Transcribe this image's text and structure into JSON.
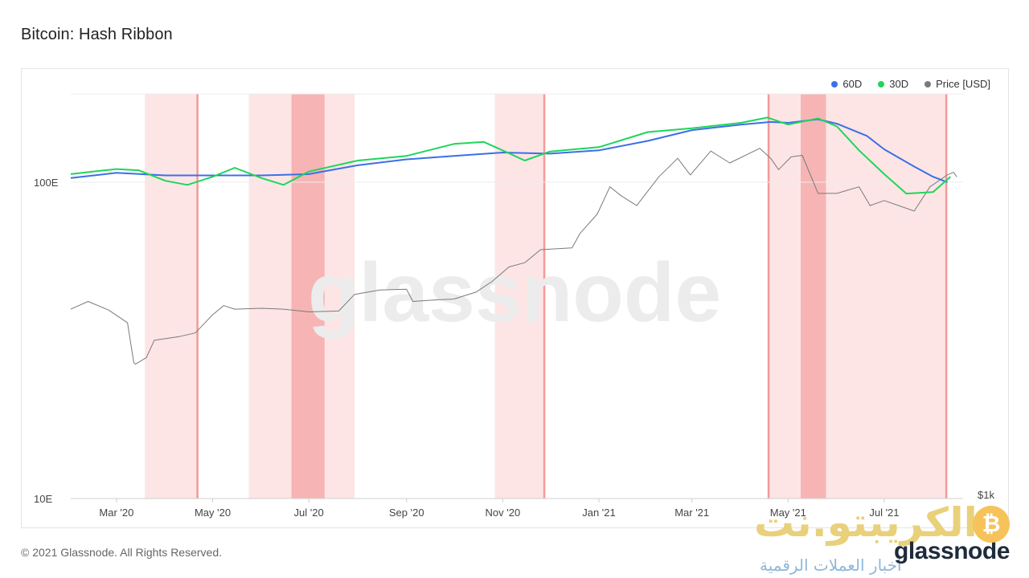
{
  "title": "Bitcoin: Hash Ribbon",
  "footer": "© 2021 Glassnode. All Rights Reserved.",
  "legend": [
    {
      "label": "60D",
      "color": "#3b6fe8"
    },
    {
      "label": "30D",
      "color": "#1ed65a"
    },
    {
      "label": "Price [USD]",
      "color": "#7a7a7a"
    }
  ],
  "watermarks": {
    "center": "glassnode",
    "arabic": "الكريبتو.نت",
    "arabic_sub": "أخبار العملات الرقمية",
    "english": "glassnode",
    "btc_symbol": "₿"
  },
  "chart_data": {
    "type": "line",
    "title": "Bitcoin: Hash Ribbon",
    "x_axis": {
      "type": "date",
      "range": [
        "2020-02-01",
        "2021-08-20"
      ],
      "tick_labels": [
        "Mar '20",
        "May '20",
        "Jul '20",
        "Sep '20",
        "Nov '20",
        "Jan '21",
        "Mar '21",
        "May '21",
        "Jul '21"
      ],
      "tick_dates": [
        "2020-03-01",
        "2020-05-01",
        "2020-07-01",
        "2020-09-01",
        "2020-11-01",
        "2021-01-01",
        "2021-03-01",
        "2021-05-01",
        "2021-07-01"
      ]
    },
    "y_left": {
      "scale": "log",
      "unit": "E",
      "range": [
        10,
        190
      ],
      "tick_labels": [
        "10E",
        "100E"
      ],
      "tick_values": [
        10,
        100
      ]
    },
    "y_right": {
      "scale": "log",
      "unit": "USD",
      "range": [
        1000,
        120000
      ],
      "tick_labels": [
        "$1k"
      ],
      "tick_values": [
        1000
      ]
    },
    "grid": "horizontal",
    "legend_position": "top-right",
    "capitulation_periods": [
      {
        "start": "2020-03-19",
        "end": "2020-04-22",
        "end_marker": true
      },
      {
        "start": "2020-05-24",
        "end": "2020-07-30"
      },
      {
        "start": "2020-10-27",
        "end": "2020-11-28",
        "end_marker": true
      },
      {
        "start": "2021-04-18",
        "end": "2021-08-10",
        "start_marker": true,
        "end_marker": true
      }
    ],
    "capitulation_dark": [
      {
        "start": "2020-06-20",
        "end": "2020-07-11"
      },
      {
        "start": "2021-05-09",
        "end": "2021-05-25"
      }
    ],
    "series": [
      {
        "name": "60D",
        "axis": "left",
        "color": "#3b6fe8",
        "points": [
          [
            "2020-02-01",
            103
          ],
          [
            "2020-03-01",
            107
          ],
          [
            "2020-04-01",
            105
          ],
          [
            "2020-05-01",
            105
          ],
          [
            "2020-06-01",
            105
          ],
          [
            "2020-07-01",
            106
          ],
          [
            "2020-08-01",
            113
          ],
          [
            "2020-09-01",
            118
          ],
          [
            "2020-10-01",
            121
          ],
          [
            "2020-11-01",
            124
          ],
          [
            "2020-12-01",
            123
          ],
          [
            "2021-01-01",
            126
          ],
          [
            "2021-02-01",
            135
          ],
          [
            "2021-03-01",
            146
          ],
          [
            "2021-04-01",
            152
          ],
          [
            "2021-04-20",
            155
          ],
          [
            "2021-05-01",
            154
          ],
          [
            "2021-05-20",
            158
          ],
          [
            "2021-06-01",
            153
          ],
          [
            "2021-06-20",
            140
          ],
          [
            "2021-07-01",
            127
          ],
          [
            "2021-07-20",
            112
          ],
          [
            "2021-08-01",
            104
          ],
          [
            "2021-08-10",
            100
          ]
        ]
      },
      {
        "name": "30D",
        "axis": "left",
        "color": "#1ed65a",
        "points": [
          [
            "2020-02-01",
            106
          ],
          [
            "2020-02-15",
            108
          ],
          [
            "2020-03-01",
            110
          ],
          [
            "2020-03-15",
            109
          ],
          [
            "2020-04-01",
            101
          ],
          [
            "2020-04-15",
            98
          ],
          [
            "2020-05-01",
            104
          ],
          [
            "2020-05-15",
            111
          ],
          [
            "2020-06-01",
            103
          ],
          [
            "2020-06-15",
            98
          ],
          [
            "2020-07-01",
            108
          ],
          [
            "2020-08-01",
            117
          ],
          [
            "2020-09-01",
            121
          ],
          [
            "2020-10-01",
            132
          ],
          [
            "2020-10-20",
            134
          ],
          [
            "2020-11-01",
            126
          ],
          [
            "2020-11-15",
            117
          ],
          [
            "2020-12-01",
            125
          ],
          [
            "2021-01-01",
            129
          ],
          [
            "2021-02-01",
            144
          ],
          [
            "2021-03-01",
            148
          ],
          [
            "2021-04-01",
            154
          ],
          [
            "2021-04-18",
            160
          ],
          [
            "2021-05-01",
            152
          ],
          [
            "2021-05-20",
            159
          ],
          [
            "2021-06-01",
            150
          ],
          [
            "2021-06-15",
            126
          ],
          [
            "2021-07-01",
            106
          ],
          [
            "2021-07-15",
            92
          ],
          [
            "2021-08-01",
            93
          ],
          [
            "2021-08-10",
            102
          ],
          [
            "2021-08-12",
            104
          ]
        ]
      },
      {
        "name": "Price [USD]",
        "axis": "right",
        "color": "#7a7a7a",
        "points": [
          [
            "2020-02-01",
            9400
          ],
          [
            "2020-02-12",
            10300
          ],
          [
            "2020-02-25",
            9300
          ],
          [
            "2020-03-08",
            8000
          ],
          [
            "2020-03-12",
            5000
          ],
          [
            "2020-03-13",
            4900
          ],
          [
            "2020-03-20",
            5300
          ],
          [
            "2020-03-25",
            6500
          ],
          [
            "2020-04-10",
            6800
          ],
          [
            "2020-04-20",
            7100
          ],
          [
            "2020-05-01",
            8800
          ],
          [
            "2020-05-08",
            9800
          ],
          [
            "2020-05-15",
            9400
          ],
          [
            "2020-06-01",
            9500
          ],
          [
            "2020-06-15",
            9400
          ],
          [
            "2020-07-01",
            9100
          ],
          [
            "2020-07-20",
            9200
          ],
          [
            "2020-07-30",
            11200
          ],
          [
            "2020-08-15",
            11800
          ],
          [
            "2020-09-01",
            11900
          ],
          [
            "2020-09-05",
            10300
          ],
          [
            "2020-09-20",
            10500
          ],
          [
            "2020-10-01",
            10600
          ],
          [
            "2020-10-15",
            11500
          ],
          [
            "2020-10-25",
            13000
          ],
          [
            "2020-11-05",
            15500
          ],
          [
            "2020-11-15",
            16300
          ],
          [
            "2020-11-25",
            19000
          ],
          [
            "2020-12-05",
            19200
          ],
          [
            "2020-12-15",
            19400
          ],
          [
            "2020-12-20",
            23000
          ],
          [
            "2020-12-31",
            29000
          ],
          [
            "2021-01-08",
            40000
          ],
          [
            "2021-01-15",
            36000
          ],
          [
            "2021-01-25",
            32000
          ],
          [
            "2021-02-08",
            45000
          ],
          [
            "2021-02-20",
            56000
          ],
          [
            "2021-02-28",
            46000
          ],
          [
            "2021-03-13",
            61000
          ],
          [
            "2021-03-25",
            53000
          ],
          [
            "2021-04-13",
            63000
          ],
          [
            "2021-04-20",
            56000
          ],
          [
            "2021-04-25",
            49000
          ],
          [
            "2021-05-03",
            57000
          ],
          [
            "2021-05-10",
            58000
          ],
          [
            "2021-05-20",
            37000
          ],
          [
            "2021-06-01",
            37000
          ],
          [
            "2021-06-15",
            40000
          ],
          [
            "2021-06-22",
            32000
          ],
          [
            "2021-07-01",
            34000
          ],
          [
            "2021-07-20",
            30000
          ],
          [
            "2021-07-30",
            40000
          ],
          [
            "2021-08-10",
            46000
          ],
          [
            "2021-08-14",
            47500
          ],
          [
            "2021-08-16",
            45000
          ]
        ]
      }
    ]
  }
}
